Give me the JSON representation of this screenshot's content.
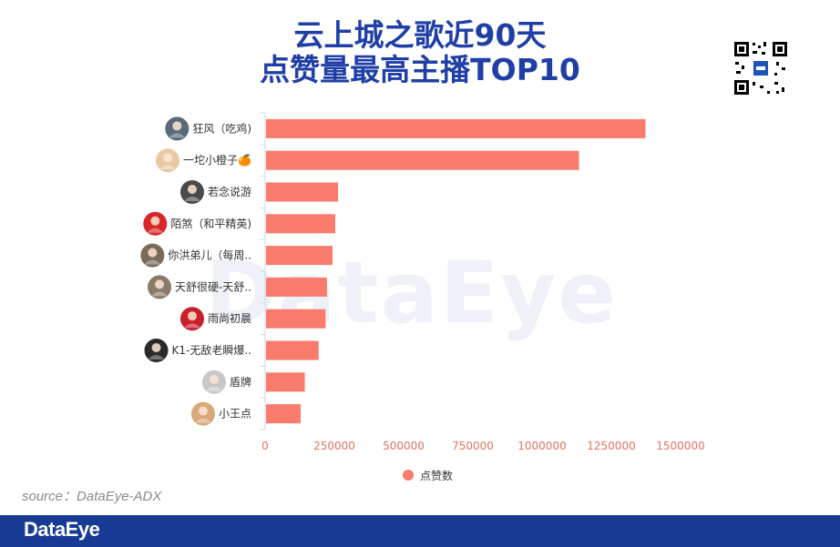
{
  "header": {
    "title_line1": "云上城之歌近90天",
    "title_line2": "点赞量最高主播TOP10"
  },
  "watermark": "DataEye",
  "source": "source：DataEye-ADX",
  "footer": {
    "brand": "DataEye"
  },
  "colors": {
    "bar": "#f97b6b",
    "title": "#1f3fa6",
    "footer": "#173a94"
  },
  "chart_data": {
    "type": "bar",
    "orientation": "horizontal",
    "categories": [
      "狂风（吃鸡)",
      "一坨小橙子🍊",
      "若念说游",
      "陌煞（和平精英)",
      "你洪弟儿（每周..",
      "天舒很硬-天舒..",
      "雨尚初晨",
      "K1-无敌老瞬爆..",
      "盾牌",
      "小王点"
    ],
    "series": [
      {
        "name": "点赞数",
        "values": [
          1370000,
          1130000,
          260000,
          250000,
          240000,
          220000,
          215000,
          190000,
          140000,
          125000
        ]
      }
    ],
    "xlim": [
      0,
      1500000
    ],
    "xticks": [
      0,
      250000,
      500000,
      750000,
      1000000,
      1250000,
      1500000
    ],
    "xtick_labels": [
      "0",
      "250000",
      "500000",
      "750000",
      "1000000",
      "1250000",
      "1500000"
    ],
    "legend_position": "bottom",
    "grid": false
  },
  "avatars": [
    {
      "icon": "gamer-avatar-icon",
      "bg": "#5b6a78"
    },
    {
      "icon": "anime-girl-avatar-icon",
      "bg": "#e8c9a4"
    },
    {
      "icon": "portrait-avatar-icon",
      "bg": "#4a4a4a"
    },
    {
      "icon": "red-character-avatar-icon",
      "bg": "#d8262a"
    },
    {
      "icon": "portrait-avatar-icon",
      "bg": "#7a6a5a"
    },
    {
      "icon": "portrait-avatar-icon",
      "bg": "#8a7a6a"
    },
    {
      "icon": "red-character-avatar-icon",
      "bg": "#c8202a"
    },
    {
      "icon": "mask-avatar-icon",
      "bg": "#2a2a2a"
    },
    {
      "icon": "husky-avatar-icon",
      "bg": "#c8c8c8"
    },
    {
      "icon": "portrait-avatar-icon",
      "bg": "#d8a878"
    }
  ]
}
